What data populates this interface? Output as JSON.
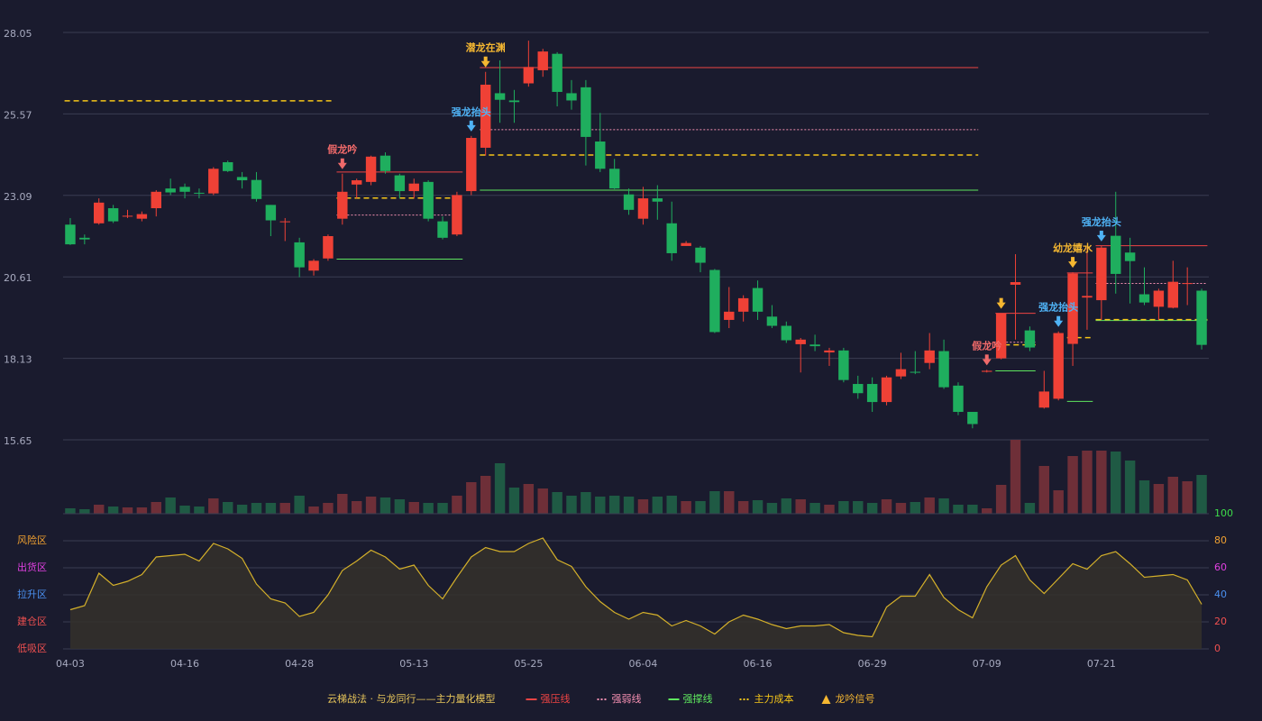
{
  "chart_data": [
    {
      "type": "candlestick",
      "categories": [
        "04-03",
        null,
        null,
        null,
        null,
        null,
        null,
        null,
        "04-16",
        null,
        null,
        null,
        null,
        null,
        null,
        null,
        "04-28",
        null,
        null,
        null,
        null,
        null,
        null,
        null,
        "05-13",
        null,
        null,
        null,
        null,
        null,
        null,
        null,
        "05-25",
        null,
        null,
        null,
        null,
        null,
        null,
        null,
        "06-04",
        null,
        null,
        null,
        null,
        null,
        null,
        null,
        "06-16",
        null,
        null,
        null,
        null,
        null,
        null,
        null,
        "06-29",
        null,
        null,
        null,
        null,
        null,
        null,
        null,
        "07-09",
        null,
        null,
        null,
        null,
        null,
        null,
        null,
        "07-21",
        null,
        null,
        null,
        null,
        null,
        null,
        null
      ],
      "open": [
        22.2,
        21.8,
        22.24,
        22.7,
        22.45,
        22.38,
        22.7,
        23.3,
        23.35,
        23.17,
        23.15,
        24.1,
        23.65,
        23.56,
        22.8,
        22.28,
        21.66,
        20.8,
        21.17,
        22.38,
        23.42,
        23.5,
        24.3,
        23.7,
        23.22,
        23.5,
        22.3,
        21.9,
        23.22,
        24.54,
        26.2,
        25.98,
        26.5,
        26.9,
        27.4,
        26.2,
        26.38,
        24.73,
        23.9,
        23.12,
        22.38,
        23.0,
        22.24,
        21.55,
        21.5,
        20.82,
        19.3,
        19.55,
        20.27,
        19.4,
        19.12,
        18.56,
        18.55,
        18.31,
        18.37,
        17.35,
        17.35,
        16.8,
        17.58,
        17.72,
        17.99,
        18.35,
        17.3,
        16.5,
        17.72,
        18.13,
        20.37,
        18.98,
        16.63,
        16.9,
        18.57,
        19.98,
        19.9,
        21.86,
        21.35,
        20.08,
        19.7,
        19.67,
        20.4,
        20.19
      ],
      "high": [
        22.4,
        21.9,
        23.0,
        22.8,
        22.65,
        22.6,
        23.25,
        23.6,
        23.45,
        23.3,
        23.95,
        24.15,
        23.8,
        23.8,
        22.8,
        22.4,
        21.8,
        21.15,
        21.9,
        23.75,
        23.6,
        24.3,
        24.4,
        23.75,
        23.6,
        23.55,
        22.45,
        23.2,
        24.9,
        26.85,
        27.2,
        26.3,
        27.8,
        27.55,
        27.45,
        26.6,
        26.6,
        25.6,
        24.2,
        23.3,
        23.35,
        23.4,
        22.9,
        21.7,
        21.55,
        20.85,
        20.3,
        20.05,
        20.5,
        19.75,
        19.25,
        18.75,
        18.85,
        18.45,
        18.45,
        17.6,
        17.55,
        17.6,
        18.3,
        18.35,
        18.9,
        18.7,
        17.4,
        16.5,
        17.78,
        19.5,
        21.3,
        19.1,
        17.75,
        18.95,
        20.75,
        21.5,
        21.55,
        23.2,
        21.8,
        20.9,
        20.25,
        21.1,
        20.9,
        20.25
      ],
      "low": [
        21.58,
        21.6,
        22.2,
        22.25,
        22.4,
        22.3,
        22.45,
        23.1,
        23.0,
        23.0,
        23.1,
        23.8,
        23.3,
        22.9,
        21.85,
        21.7,
        20.6,
        20.65,
        21.1,
        22.2,
        23.0,
        23.4,
        23.75,
        23.0,
        23.0,
        22.3,
        21.75,
        21.85,
        23.1,
        24.3,
        25.3,
        25.3,
        26.4,
        26.7,
        25.8,
        25.7,
        24.0,
        23.8,
        23.28,
        22.5,
        22.2,
        22.35,
        21.1,
        21.55,
        20.75,
        18.9,
        19.05,
        19.25,
        19.3,
        19.05,
        18.6,
        17.7,
        18.35,
        17.9,
        17.4,
        16.9,
        16.5,
        16.7,
        17.5,
        17.65,
        17.8,
        17.2,
        16.4,
        16.0,
        17.7,
        18.1,
        18.7,
        18.35,
        16.6,
        16.85,
        17.9,
        19.0,
        19.3,
        20.1,
        19.8,
        19.75,
        19.3,
        19.65,
        19.75,
        18.4
      ],
      "close": [
        21.6,
        21.75,
        22.87,
        22.3,
        22.47,
        22.52,
        23.2,
        23.18,
        23.2,
        23.15,
        23.9,
        23.83,
        23.55,
        22.98,
        22.33,
        22.3,
        20.9,
        21.1,
        21.85,
        23.2,
        23.55,
        24.27,
        23.83,
        23.22,
        23.45,
        22.38,
        21.8,
        23.1,
        24.84,
        26.46,
        26.0,
        25.93,
        27.0,
        27.47,
        26.24,
        25.98,
        24.87,
        23.9,
        23.3,
        22.65,
        23.0,
        22.9,
        21.33,
        21.64,
        21.04,
        18.93,
        19.55,
        19.96,
        19.55,
        19.12,
        18.68,
        18.7,
        18.5,
        18.37,
        17.47,
        17.07,
        16.8,
        17.55,
        17.8,
        17.7,
        18.37,
        17.25,
        16.5,
        16.13,
        17.75,
        19.5,
        20.45,
        18.46,
        17.12,
        18.9,
        20.71,
        20.03,
        21.5,
        20.7,
        21.09,
        19.83,
        20.19,
        20.46,
        20.42,
        18.54
      ],
      "up_color": "#ef4136",
      "down_color": "#1fae5e",
      "ylim": [
        15.65,
        28.05
      ],
      "yticks": [
        15.65,
        18.13,
        20.61,
        23.09,
        25.57,
        28.05
      ],
      "grid": true,
      "annotations": [
        {
          "index": 19,
          "text": "假龙吟",
          "color": "#f06a6a"
        },
        {
          "index": 28,
          "text": "强龙抬头",
          "color": "#4fb3f6"
        },
        {
          "index": 29,
          "text": "潜龙在渊",
          "color": "#f5b731"
        },
        {
          "index": 64,
          "text": "假龙吟",
          "color": "#f06a6a"
        },
        {
          "index": 65,
          "color": "#f5b731"
        },
        {
          "index": 69,
          "text": "强龙抬头",
          "color": "#4fb3f6"
        },
        {
          "index": 70,
          "text": "幼龙嬉水",
          "color": "#f5b731"
        },
        {
          "index": 72,
          "text": "强龙抬头",
          "color": "#4fb3f6"
        }
      ]
    },
    {
      "type": "bar",
      "values": [
        6,
        5,
        10,
        8,
        7,
        7,
        13,
        18,
        9,
        8,
        17,
        13,
        10,
        12,
        12,
        12,
        20,
        8,
        12,
        22,
        14,
        19,
        18,
        16,
        13,
        12,
        12,
        20,
        35,
        42,
        56,
        29,
        33,
        28,
        24,
        20,
        24,
        19,
        20,
        19,
        16,
        19,
        20,
        14,
        14,
        25,
        25,
        14,
        15,
        12,
        17,
        16,
        12,
        10,
        14,
        14,
        12,
        16,
        12,
        13,
        18,
        17,
        10,
        10,
        6,
        32,
        82,
        12,
        53,
        26,
        64,
        70,
        70,
        69,
        59,
        37,
        33,
        41,
        36,
        43
      ],
      "up_color": "#6e2f38",
      "down_color": "#1f5a44",
      "ylim": [
        0,
        82
      ]
    },
    {
      "type": "area",
      "values": [
        29,
        32,
        56,
        47,
        50,
        55,
        68,
        69,
        70,
        65,
        78,
        74,
        67,
        48,
        37,
        34,
        24,
        27,
        40,
        58,
        65,
        73,
        68,
        59,
        62,
        47,
        37,
        53,
        68,
        75,
        72,
        72,
        78,
        82,
        66,
        61,
        46,
        35,
        27,
        22,
        27,
        25,
        17,
        21,
        17,
        11,
        20,
        25,
        22,
        18,
        15,
        17,
        17,
        18,
        12,
        10,
        9,
        31,
        39,
        39,
        55,
        38,
        29,
        23,
        46,
        62,
        69,
        51,
        41,
        52,
        63,
        59,
        69,
        72,
        63,
        53,
        54,
        55,
        51,
        33
      ],
      "color": "#d4b02a",
      "fill": "#35302a",
      "ylim": [
        0,
        100
      ],
      "yticks": [
        0,
        20,
        40,
        60,
        80,
        100
      ],
      "tick_colors": [
        "#f05050",
        "#f05050",
        "#4a90f0",
        "#e040e0",
        "#f0a030",
        "#3ddc4a"
      ],
      "zones": [
        {
          "label": "风险区",
          "value": 80,
          "color": "#f0a030"
        },
        {
          "label": "出货区",
          "value": 60,
          "color": "#e040e0"
        },
        {
          "label": "拉升区",
          "value": 40,
          "color": "#4a90f0"
        },
        {
          "label": "建仓区",
          "value": 20,
          "color": "#f05050"
        },
        {
          "label": "低吸区",
          "value": 0,
          "color": "#f05050"
        }
      ]
    }
  ],
  "legend": {
    "title": "云梯战法 · 与龙同行——主力量化模型",
    "items": [
      {
        "name": "强压线",
        "color": "#ef4444",
        "dash": "solid",
        "segments": [
          {
            "start": 19,
            "end": 27,
            "value": 23.8
          },
          {
            "start": 29,
            "end": 63,
            "value": 26.98
          },
          {
            "start": 65,
            "end": 67,
            "value": 19.5
          },
          {
            "start": 70,
            "end": 71,
            "value": 20.73
          },
          {
            "start": 72,
            "end": 79,
            "value": 21.56
          }
        ]
      },
      {
        "name": "强弱线",
        "color": "#f48fb1",
        "dash": "dotted",
        "segments": [
          {
            "start": 19,
            "end": 27,
            "value": 22.49
          },
          {
            "start": 29,
            "end": 63,
            "value": 25.09
          },
          {
            "start": 65,
            "end": 67,
            "value": 18.62
          },
          {
            "start": 72,
            "end": 79,
            "value": 20.41
          }
        ]
      },
      {
        "name": "强撑线",
        "color": "#5ee65e",
        "dash": "solid",
        "segments": [
          {
            "start": 19,
            "end": 27,
            "value": 21.15
          },
          {
            "start": 29,
            "end": 63,
            "value": 23.25
          },
          {
            "start": 65,
            "end": 67,
            "value": 17.75
          },
          {
            "start": 70,
            "end": 71,
            "value": 16.82
          },
          {
            "start": 72,
            "end": 79,
            "value": 19.28
          }
        ]
      },
      {
        "name": "主力成本",
        "color": "#f5c518",
        "dash": "dashed",
        "segments": [
          {
            "start": 0,
            "end": 18,
            "value": 25.97
          },
          {
            "start": 19,
            "end": 27,
            "value": 23.01
          },
          {
            "start": 29,
            "end": 63,
            "value": 24.32
          },
          {
            "start": 65,
            "end": 67,
            "value": 18.54
          },
          {
            "start": 70,
            "end": 71,
            "value": 18.76
          },
          {
            "start": 72,
            "end": 79,
            "value": 19.31
          }
        ]
      },
      {
        "name": "龙吟信号",
        "color": "#f5b731",
        "dash": "marker"
      }
    ]
  }
}
